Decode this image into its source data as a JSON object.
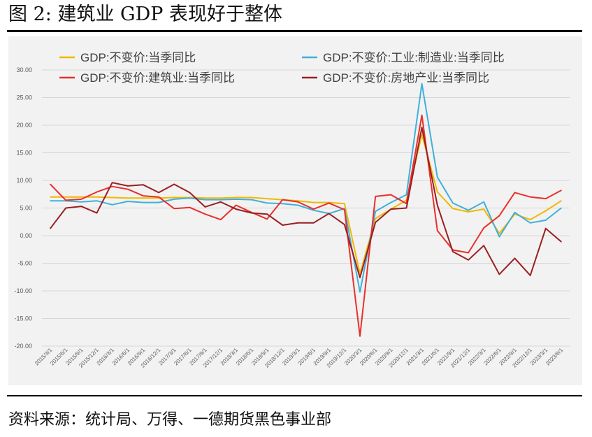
{
  "figure": {
    "title": "图 2: 建筑业 GDP 表现好于整体",
    "source": "资料来源：统计局、万得、一德期货黑色事业部"
  },
  "chart_data": {
    "type": "line",
    "title": "",
    "xlabel": "",
    "ylabel": "",
    "ylim": [
      -20,
      30
    ],
    "y_ticks": [
      30,
      25,
      20,
      15,
      10,
      5,
      0,
      -5,
      -10,
      -15,
      -20
    ],
    "y_tick_labels": [
      "30.00",
      "25.00",
      "20.00",
      "15.00",
      "10.00",
      "5.00",
      "0.00",
      "-5.00",
      "-10.00",
      "-15.00",
      "-20.00"
    ],
    "grid": true,
    "legend_position": "top",
    "x": [
      "2015/3/1",
      "2015/6/1",
      "2015/9/1",
      "2015/12/1",
      "2016/3/1",
      "2016/6/1",
      "2016/9/1",
      "2016/12/1",
      "2017/3/1",
      "2017/6/1",
      "2017/9/1",
      "2017/12/1",
      "2018/3/1",
      "2018/6/1",
      "2018/9/1",
      "2018/12/1",
      "2019/3/1",
      "2019/6/1",
      "2019/9/1",
      "2019/12/1",
      "2020/3/1",
      "2020/6/1",
      "2020/9/1",
      "2020/12/1",
      "2021/3/1",
      "2021/6/1",
      "2021/9/1",
      "2021/12/1",
      "2022/3/1",
      "2022/6/1",
      "2022/9/1",
      "2022/12/1",
      "2023/3/1",
      "2023/6/1"
    ],
    "series": [
      {
        "name": "GDP:不变价:当季同比",
        "color": "#f0b800",
        "values": [
          7.0,
          7.0,
          7.0,
          7.0,
          6.9,
          6.8,
          6.8,
          6.8,
          6.9,
          6.9,
          6.8,
          6.8,
          6.9,
          6.9,
          6.7,
          6.5,
          6.3,
          6.0,
          6.0,
          5.8,
          -6.9,
          3.1,
          4.8,
          6.4,
          18.3,
          7.9,
          4.9,
          4.3,
          4.8,
          0.4,
          3.9,
          2.9,
          4.5,
          6.3
        ]
      },
      {
        "name": "GDP:不变价:工业:制造业:当季同比",
        "color": "#3fb0dc",
        "values": [
          6.3,
          6.3,
          6.1,
          6.3,
          5.6,
          6.2,
          6.0,
          6.0,
          6.6,
          6.8,
          6.5,
          6.5,
          6.6,
          6.5,
          5.9,
          5.8,
          5.5,
          4.6,
          4.0,
          4.9,
          -10.2,
          4.4,
          6.0,
          7.4,
          27.5,
          10.6,
          5.9,
          4.6,
          6.1,
          -0.2,
          4.2,
          2.3,
          2.8,
          5.0
        ]
      },
      {
        "name": "GDP:不变价:建筑业:当季同比",
        "color": "#e8302c",
        "values": [
          9.3,
          6.4,
          6.6,
          7.9,
          8.9,
          8.4,
          7.2,
          7.0,
          4.9,
          5.1,
          3.9,
          2.9,
          5.5,
          4.2,
          3.0,
          6.5,
          6.1,
          4.8,
          5.9,
          4.7,
          -18.2,
          7.1,
          7.4,
          5.8,
          21.8,
          0.9,
          -2.6,
          -3.1,
          1.4,
          3.6,
          7.8,
          7.0,
          6.7,
          8.2
        ]
      },
      {
        "name": "GDP:不变价:房地产业:当季同比",
        "color": "#9a1f22",
        "values": [
          1.3,
          5.0,
          5.3,
          4.1,
          9.6,
          9.0,
          9.2,
          7.8,
          9.3,
          7.8,
          5.2,
          6.1,
          4.8,
          4.1,
          3.9,
          1.9,
          2.3,
          2.3,
          4.0,
          2.0,
          -7.6,
          2.4,
          4.8,
          5.0,
          19.6,
          5.5,
          -2.9,
          -4.4,
          -1.8,
          -7.0,
          -4.1,
          -7.2,
          1.3,
          -1.1
        ]
      }
    ]
  }
}
